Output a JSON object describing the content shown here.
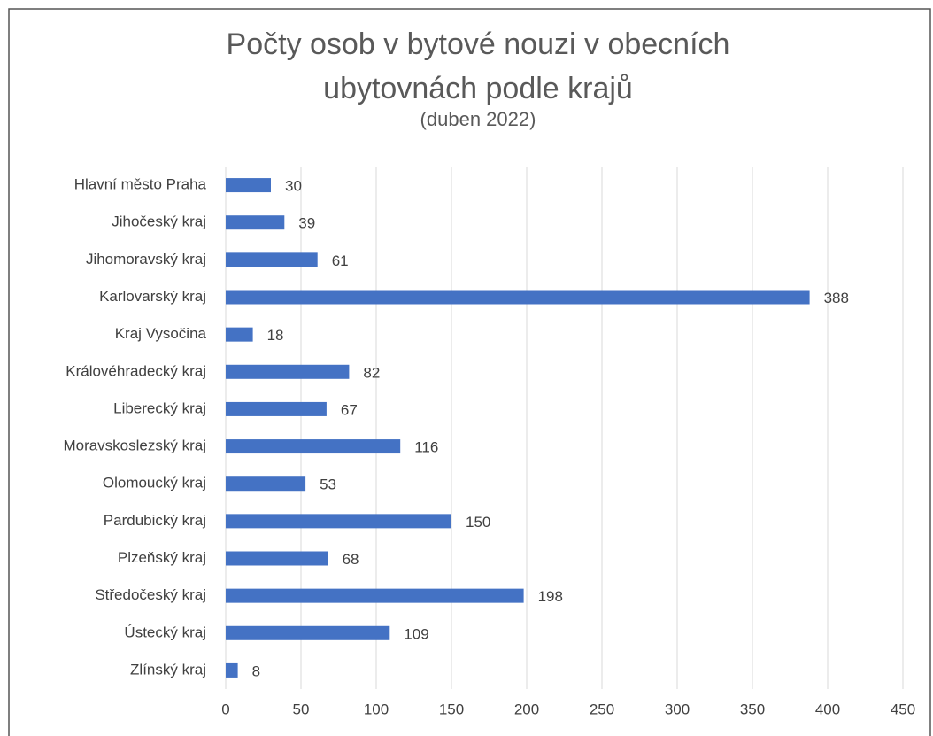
{
  "chart_data": {
    "type": "bar",
    "orientation": "horizontal",
    "title": "Počty osob v bytové nouzi v obecních ubytovnách podle krajů",
    "subtitle": "(duben 2022)",
    "categories": [
      "Hlavní město Praha",
      "Jihočeský kraj",
      "Jihomoravský kraj",
      "Karlovarský kraj",
      "Kraj Vysočina",
      "Královéhradecký kraj",
      "Liberecký kraj",
      "Moravskoslezský kraj",
      "Olomoucký kraj",
      "Pardubický kraj",
      "Plzeňský kraj",
      "Středočeský kraj",
      "Ústecký kraj",
      "Zlínský kraj"
    ],
    "values": [
      30,
      39,
      61,
      388,
      18,
      82,
      67,
      116,
      53,
      150,
      68,
      198,
      109,
      8
    ],
    "color": "#4472c4",
    "xlim": [
      0,
      450
    ],
    "xticks": [
      0,
      50,
      100,
      150,
      200,
      250,
      300,
      350,
      400,
      450
    ],
    "grid": true
  }
}
